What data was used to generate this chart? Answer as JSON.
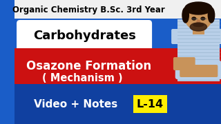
{
  "bg_color": "#1A5DC8",
  "title_text": "Organic Chemistry B.Sc. 3rd Year",
  "title_color": "#000000",
  "title_bg": "#F0F0F0",
  "carb_text": "Carbohydrates",
  "carb_text_color": "#000000",
  "carb_bg": "#FFFFFF",
  "osazone_text1": "Osazone Formation",
  "osazone_text2": "( Mechanism )",
  "osazone_bg": "#CC1111",
  "osazone_text_color": "#FFFFFF",
  "bottom_text": "Video + Notes",
  "bottom_text_color": "#000000",
  "bottom_bg": "#1A5DC8",
  "label_text": "L-14",
  "label_bg": "#FFEE00",
  "label_text_color": "#000000",
  "skin_color": "#C8935A",
  "shirt_color": "#B8CFE8",
  "shirt_stripe": "#8FAEC8",
  "hair_color": "#1A0A00",
  "beard_color": "#3A2010"
}
